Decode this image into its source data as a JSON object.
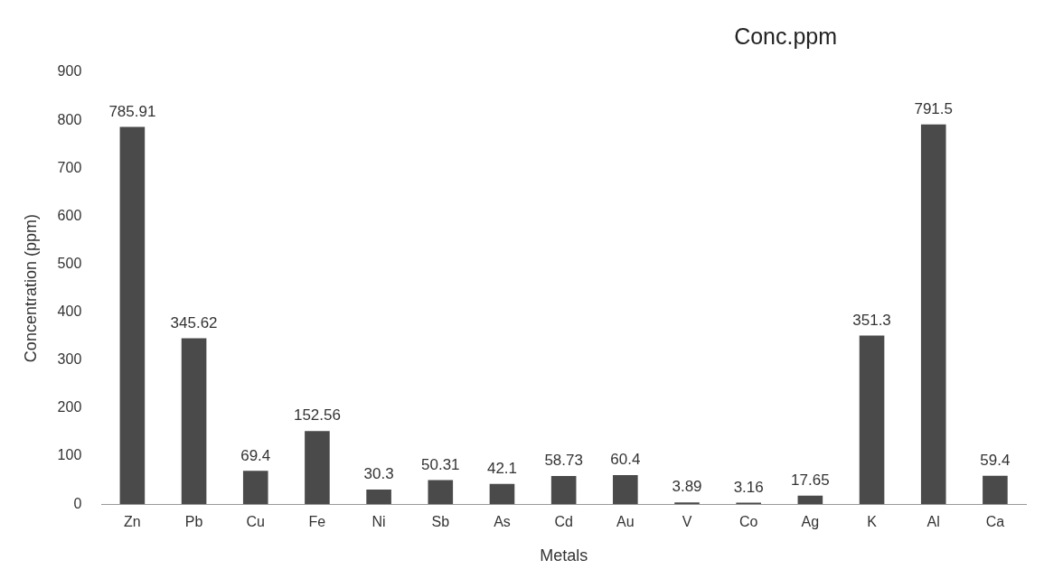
{
  "chart_data": {
    "type": "bar",
    "title": "Conc.ppm",
    "xlabel": "Metals",
    "ylabel": "Concentration (ppm)",
    "categories": [
      "Zn",
      "Pb",
      "Cu",
      "Fe",
      "Ni",
      "Sb",
      "As",
      "Cd",
      "Au",
      "V",
      "Co",
      "Ag",
      "K",
      "Al",
      "Ca"
    ],
    "values": [
      785.91,
      345.62,
      69.4,
      152.56,
      30.3,
      50.31,
      42.1,
      58.73,
      60.4,
      3.89,
      3.16,
      17.65,
      351.3,
      791.5,
      59.4
    ],
    "color": "#4a4a4a",
    "ylim": [
      0,
      900
    ],
    "yticks": [
      0,
      100,
      200,
      300,
      400,
      500,
      600,
      700,
      800,
      900
    ],
    "grid": false,
    "legend": false,
    "data_labels": true
  }
}
